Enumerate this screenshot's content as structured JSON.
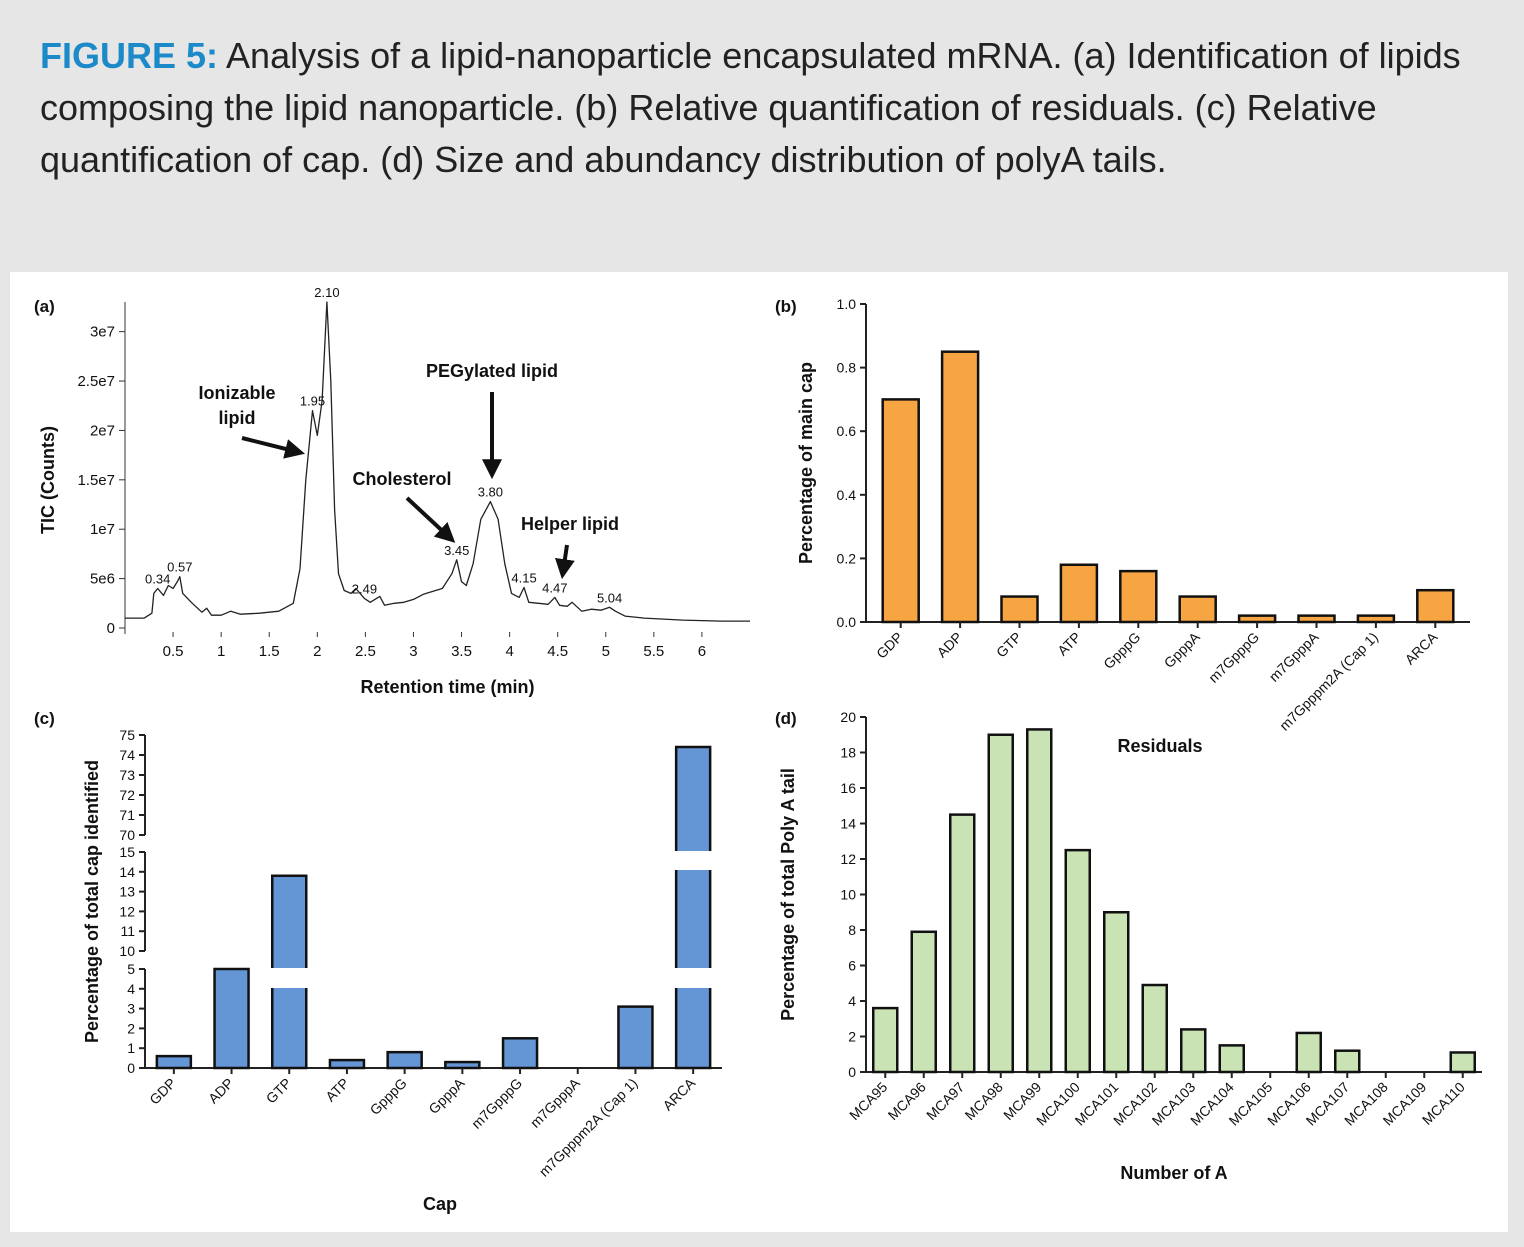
{
  "caption": {
    "label": "FIGURE 5:",
    "text": " Analysis of a lipid-nanoparticle encapsulated mRNA. (a) Identification of lipids composing the lipid nanoparticle. (b) Relative quantification of residuals. (c) Relative quantification of cap. (d) Size and abundancy distribution of polyA tails."
  },
  "chart_data": [
    {
      "panel": "(a)",
      "type": "line",
      "ylabel": "TIC (Counts)",
      "xlabel": "Retention time (min)",
      "xlim": [
        0,
        6.5
      ],
      "ylim": [
        0,
        33000000
      ],
      "xticks": [
        "0.5",
        "1",
        "1.5",
        "2",
        "2.5",
        "3",
        "3.5",
        "4",
        "4.5",
        "5",
        "5.5",
        "6"
      ],
      "yticks": [
        "0",
        "5e6",
        "1e7",
        "1.5e7",
        "2e7",
        "2.5e7",
        "3e7"
      ],
      "trace": [
        [
          0,
          1000000
        ],
        [
          0.2,
          1000000
        ],
        [
          0.28,
          1500000
        ],
        [
          0.3,
          3500000
        ],
        [
          0.34,
          4000000
        ],
        [
          0.4,
          3300000
        ],
        [
          0.45,
          4300000
        ],
        [
          0.5,
          4000000
        ],
        [
          0.55,
          4800000
        ],
        [
          0.57,
          5200000
        ],
        [
          0.6,
          3500000
        ],
        [
          0.7,
          2500000
        ],
        [
          0.8,
          1600000
        ],
        [
          0.85,
          2000000
        ],
        [
          0.9,
          1300000
        ],
        [
          1.0,
          1300000
        ],
        [
          1.1,
          1700000
        ],
        [
          1.2,
          1400000
        ],
        [
          1.4,
          1500000
        ],
        [
          1.6,
          1700000
        ],
        [
          1.75,
          2500000
        ],
        [
          1.82,
          6000000
        ],
        [
          1.88,
          15000000
        ],
        [
          1.95,
          22000000
        ],
        [
          2.0,
          19500000
        ],
        [
          2.05,
          23000000
        ],
        [
          2.1,
          33000000
        ],
        [
          2.14,
          25000000
        ],
        [
          2.18,
          12000000
        ],
        [
          2.22,
          5500000
        ],
        [
          2.28,
          3800000
        ],
        [
          2.35,
          3500000
        ],
        [
          2.4,
          4000000
        ],
        [
          2.49,
          3000000
        ],
        [
          2.55,
          2600000
        ],
        [
          2.65,
          3200000
        ],
        [
          2.7,
          2300000
        ],
        [
          2.8,
          2500000
        ],
        [
          2.9,
          2600000
        ],
        [
          3.0,
          2900000
        ],
        [
          3.1,
          3400000
        ],
        [
          3.2,
          3700000
        ],
        [
          3.3,
          4000000
        ],
        [
          3.4,
          5500000
        ],
        [
          3.45,
          6900000
        ],
        [
          3.5,
          4700000
        ],
        [
          3.55,
          4300000
        ],
        [
          3.62,
          6500000
        ],
        [
          3.7,
          11000000
        ],
        [
          3.8,
          12800000
        ],
        [
          3.88,
          11000000
        ],
        [
          3.95,
          6500000
        ],
        [
          4.02,
          3500000
        ],
        [
          4.1,
          3100000
        ],
        [
          4.15,
          4100000
        ],
        [
          4.2,
          2600000
        ],
        [
          4.3,
          2500000
        ],
        [
          4.4,
          2400000
        ],
        [
          4.47,
          3100000
        ],
        [
          4.52,
          2300000
        ],
        [
          4.6,
          2200000
        ],
        [
          4.65,
          2600000
        ],
        [
          4.75,
          1700000
        ],
        [
          4.85,
          1900000
        ],
        [
          4.95,
          1800000
        ],
        [
          5.04,
          2100000
        ],
        [
          5.1,
          1700000
        ],
        [
          5.2,
          1200000
        ],
        [
          5.4,
          1000000
        ],
        [
          5.6,
          900000
        ],
        [
          5.8,
          800000
        ],
        [
          6.0,
          750000
        ],
        [
          6.2,
          700000
        ],
        [
          6.5,
          700000
        ]
      ],
      "peaks": [
        {
          "x": 0.34,
          "y": 4000000,
          "label": "0.34"
        },
        {
          "x": 0.57,
          "y": 5200000,
          "label": "0.57"
        },
        {
          "x": 1.95,
          "y": 22000000,
          "label": "1.95"
        },
        {
          "x": 2.1,
          "y": 33000000,
          "label": "2.10"
        },
        {
          "x": 2.49,
          "y": 3000000,
          "label": "2.49"
        },
        {
          "x": 3.45,
          "y": 6900000,
          "label": "3.45"
        },
        {
          "x": 3.8,
          "y": 12800000,
          "label": "3.80"
        },
        {
          "x": 4.15,
          "y": 4100000,
          "label": "4.15"
        },
        {
          "x": 4.47,
          "y": 3100000,
          "label": "4.47"
        },
        {
          "x": 5.04,
          "y": 2100000,
          "label": "5.04"
        }
      ],
      "annotations": {
        "ionizable": [
          "Ionizable",
          "lipid"
        ],
        "cholesterol": "Cholesterol",
        "pegylated": "PEGylated lipid",
        "helper": "Helper lipid"
      }
    },
    {
      "panel": "(b)",
      "type": "bar",
      "ylabel": "Percentage of main cap",
      "ylim": [
        0,
        1.0
      ],
      "yticks": [
        "0.0",
        "0.2",
        "0.4",
        "0.6",
        "0.8",
        "1.0"
      ],
      "categories": [
        "GDP",
        "ADP",
        "GTP",
        "ATP",
        "GpppG",
        "GpppA",
        "m7GpppG",
        "m7GpppA",
        "m7Gpppm2A (Cap 1)",
        "ARCA"
      ],
      "values": [
        0.7,
        0.85,
        0.08,
        0.18,
        0.16,
        0.08,
        0.02,
        0.02,
        0.02,
        0.1
      ],
      "color": "#f7a443"
    },
    {
      "panel": "(c)",
      "type": "bar",
      "ylabel": "Percentage of total cap identified",
      "xlabel": "Cap",
      "broken_axis": true,
      "yticks_segments": [
        [
          "0",
          "1",
          "2",
          "3",
          "4",
          "5"
        ],
        [
          "10",
          "11",
          "12",
          "13",
          "14",
          "15"
        ],
        [
          "70",
          "71",
          "72",
          "73",
          "74",
          "75"
        ]
      ],
      "categories": [
        "GDP",
        "ADP",
        "GTP",
        "ATP",
        "GpppG",
        "GpppA",
        "m7GpppG",
        "m7GpppA",
        "m7Gpppm2A (Cap 1)",
        "ARCA"
      ],
      "values": [
        0.6,
        5.0,
        13.8,
        0.4,
        0.8,
        0.3,
        1.5,
        0,
        3.1,
        74.4
      ],
      "color": "#6495d4"
    },
    {
      "panel": "(d)",
      "type": "bar",
      "title": "Residuals",
      "ylabel": "Percentage of total Poly A tail",
      "xlabel": "Number of A",
      "ylim": [
        0,
        20
      ],
      "yticks": [
        "0",
        "2",
        "4",
        "6",
        "8",
        "10",
        "12",
        "14",
        "16",
        "18",
        "20"
      ],
      "categories": [
        "MCA95",
        "MCA96",
        "MCA97",
        "MCA98",
        "MCA99",
        "MCA100",
        "MCA101",
        "MCA102",
        "MCA103",
        "MCA104",
        "MCA105",
        "MCA106",
        "MCA107",
        "MCA108",
        "MCA109",
        "MCA110"
      ],
      "values": [
        3.6,
        7.9,
        14.5,
        19.0,
        19.3,
        12.5,
        9.0,
        4.9,
        2.4,
        1.5,
        0,
        2.2,
        1.2,
        0,
        0,
        1.1
      ],
      "color": "#c9e3b4"
    }
  ]
}
